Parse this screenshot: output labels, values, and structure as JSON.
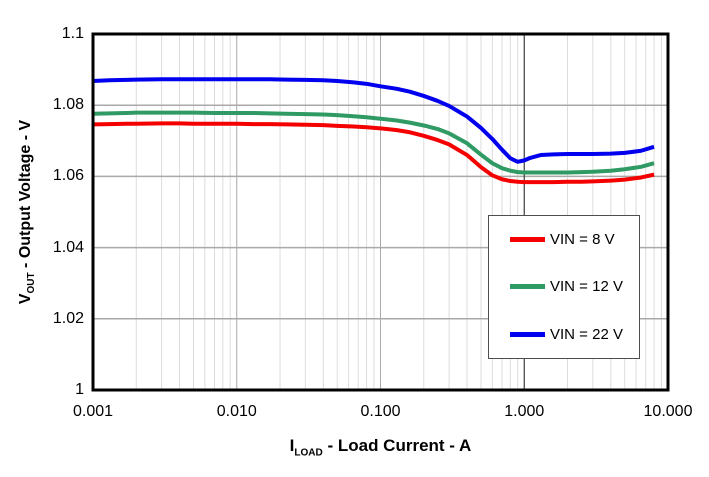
{
  "colors": {
    "background": "#ffffff",
    "plot_border": "#000000",
    "grid_minor": "#dcdcdc",
    "grid_major": "#a9a9a9",
    "grid_emphasis": "#3c3c3c",
    "text": "#000000",
    "legend_border": "#4d4d4d"
  },
  "chart_data": {
    "type": "line",
    "title": "",
    "x_axis": {
      "label_symbol": "I",
      "label_subscript": "LOAD",
      "label_rest": " - Load Current - A",
      "scale": "log",
      "min": 0.001,
      "max": 10,
      "ticks": [
        {
          "value": 0.001,
          "label": "0.001"
        },
        {
          "value": 0.01,
          "label": "0.010"
        },
        {
          "value": 0.1,
          "label": "0.100"
        },
        {
          "value": 1,
          "label": "1.000"
        },
        {
          "value": 10,
          "label": "10.000"
        }
      ],
      "minor_gridlines": "log-decades 2-9",
      "emphasized_gridline_at": 1.0
    },
    "y_axis": {
      "label_symbol": "V",
      "label_subscript": "OUT",
      "label_rest": " - Output Voltage - V",
      "scale": "linear",
      "min": 1.0,
      "max": 1.1,
      "ticks": [
        {
          "value": 1.1,
          "label": "1.1"
        },
        {
          "value": 1.08,
          "label": "1.08"
        },
        {
          "value": 1.06,
          "label": "1.06"
        },
        {
          "value": 1.04,
          "label": "1.04"
        },
        {
          "value": 1.02,
          "label": "1.02"
        },
        {
          "value": 1.0,
          "label": "1"
        }
      ]
    },
    "grid": {
      "vertical_minor": true,
      "vertical_major": true,
      "horizontal_major": true,
      "horizontal_minor": false
    },
    "legend": {
      "position": "inside-lower-right",
      "border": true
    },
    "x": [
      0.001,
      0.0013,
      0.0017,
      0.002,
      0.003,
      0.004,
      0.005,
      0.007,
      0.01,
      0.013,
      0.017,
      0.022,
      0.03,
      0.04,
      0.05,
      0.065,
      0.08,
      0.1,
      0.13,
      0.16,
      0.2,
      0.25,
      0.3,
      0.4,
      0.5,
      0.6,
      0.7,
      0.8,
      0.9,
      1.0,
      1.1,
      1.3,
      1.6,
      2.0,
      2.5,
      3.0,
      4.0,
      5.0,
      6.5,
      8.0
    ],
    "series": [
      {
        "name": "VIN = 8 V",
        "color": "#f40000",
        "line_width": 4,
        "values": [
          1.0746,
          1.0747,
          1.0748,
          1.0748,
          1.0749,
          1.0749,
          1.0748,
          1.0748,
          1.0748,
          1.0747,
          1.0747,
          1.0746,
          1.0745,
          1.0744,
          1.0742,
          1.074,
          1.0738,
          1.0735,
          1.073,
          1.0724,
          1.0714,
          1.0702,
          1.069,
          1.066,
          1.0626,
          1.0603,
          1.0592,
          1.0587,
          1.0585,
          1.0584,
          1.0584,
          1.0584,
          1.0584,
          1.0585,
          1.0585,
          1.0586,
          1.0588,
          1.0591,
          1.0597,
          1.0605
        ]
      },
      {
        "name": "VIN = 12 V",
        "color": "#2f9a63",
        "line_width": 4,
        "values": [
          1.0776,
          1.0777,
          1.0778,
          1.0779,
          1.0779,
          1.0779,
          1.0779,
          1.0778,
          1.0778,
          1.0778,
          1.0777,
          1.0776,
          1.0775,
          1.0774,
          1.0772,
          1.0769,
          1.0766,
          1.0762,
          1.0757,
          1.0751,
          1.0743,
          1.0733,
          1.0721,
          1.0693,
          1.0661,
          1.0637,
          1.0623,
          1.0616,
          1.0612,
          1.0611,
          1.0611,
          1.0611,
          1.0611,
          1.0611,
          1.0612,
          1.0613,
          1.0616,
          1.062,
          1.0627,
          1.0637
        ]
      },
      {
        "name": "VIN = 22 V",
        "color": "#0000ee",
        "line_width": 4,
        "values": [
          1.0868,
          1.087,
          1.0871,
          1.0872,
          1.0873,
          1.0873,
          1.0873,
          1.0873,
          1.0873,
          1.0873,
          1.0873,
          1.0872,
          1.0871,
          1.087,
          1.0868,
          1.0864,
          1.086,
          1.0853,
          1.0846,
          1.0838,
          1.0826,
          1.0812,
          1.0798,
          1.0768,
          1.0736,
          1.0705,
          1.0675,
          1.0651,
          1.0641,
          1.0645,
          1.0652,
          1.066,
          1.0662,
          1.0663,
          1.0663,
          1.0663,
          1.0664,
          1.0666,
          1.0672,
          1.0683
        ]
      }
    ]
  }
}
